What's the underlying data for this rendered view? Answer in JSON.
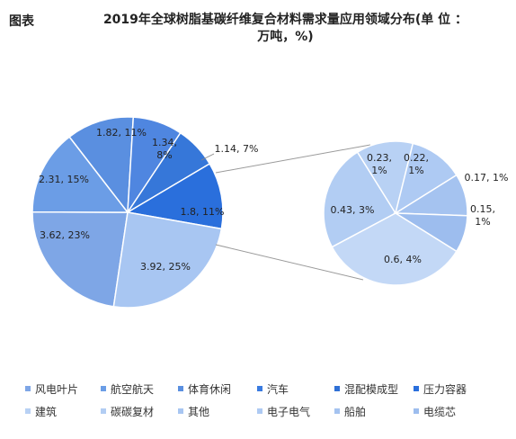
{
  "header": {
    "prefix": "图表",
    "title_line1": "2019年全球树脂基碳纤维复合材料需求量应用领域分布(单 位 ：",
    "title_line2": "万吨，%)"
  },
  "chart_data": {
    "type": "pie",
    "main_pie": {
      "slices": [
        {
          "name": "风电叶片",
          "value": 3.62,
          "percent": 23,
          "label": "3.62, 23%",
          "color": "#7ea6e6"
        },
        {
          "name": "航空航天",
          "value": 2.31,
          "percent": 15,
          "label": "2.31, 15%",
          "color": "#6b9de6"
        },
        {
          "name": "体育休闲",
          "value": 1.82,
          "percent": 11,
          "label": "1.82, 11%",
          "color": "#5a8fe0"
        },
        {
          "name": "汽车",
          "value": 1.34,
          "percent": 8,
          "label": "1.34,\n8%",
          "color": "#4f86e0"
        },
        {
          "name": "混配模成型",
          "value": 1.14,
          "percent": 7,
          "label": "1.14, 7%",
          "color": "#3677d9"
        },
        {
          "name": "压力容器",
          "value": 1.8,
          "percent": 11,
          "label": "1.8, 11%",
          "color": "#2a6fdc"
        },
        {
          "name": "其他",
          "value": 3.92,
          "percent": 25,
          "label": "3.92, 25%",
          "color": "#a8c6f2"
        }
      ]
    },
    "secondary_pie": {
      "slices": [
        {
          "name": "碳碳复材",
          "value": 0.43,
          "percent": 3,
          "label": "0.43, 3%",
          "color": "#b2cdf3"
        },
        {
          "name": "建筑",
          "value": 0.23,
          "percent": 1,
          "label": "0.23,\n1%",
          "color": "#b8d1f4"
        },
        {
          "name": "电子电气",
          "value": 0.22,
          "percent": 1,
          "label": "0.22,\n1%",
          "color": "#aecaf3"
        },
        {
          "name": "船舶",
          "value": 0.17,
          "percent": 1,
          "label": "0.17, 1%",
          "color": "#a5c3f0"
        },
        {
          "name": "电缆芯",
          "value": 0.15,
          "percent": 1,
          "label": "0.15,\n1%",
          "color": "#9dbdee"
        },
        {
          "name": "其他",
          "value": 0.6,
          "percent": 4,
          "label": "0.6, 4%",
          "color": "#c3d8f6"
        }
      ]
    },
    "legend": [
      {
        "label": "风电叶片",
        "color": "#7ea6e6"
      },
      {
        "label": "航空航天",
        "color": "#6b9de6"
      },
      {
        "label": "体育休闲",
        "color": "#5a8fe0"
      },
      {
        "label": "汽车",
        "color": "#3a7be0"
      },
      {
        "label": "混配模成型",
        "color": "#2f70d6"
      },
      {
        "label": "压力容器",
        "color": "#2a6fdc"
      },
      {
        "label": "建筑",
        "color": "#b8d1f4"
      },
      {
        "label": "碳碳复材",
        "color": "#b2cdf3"
      },
      {
        "label": "其他",
        "color": "#a8c6f2"
      },
      {
        "label": "电子电气",
        "color": "#aecaf3"
      },
      {
        "label": "船舶",
        "color": "#a5c3f0"
      },
      {
        "label": "电缆芯",
        "color": "#9dbdee"
      }
    ]
  }
}
